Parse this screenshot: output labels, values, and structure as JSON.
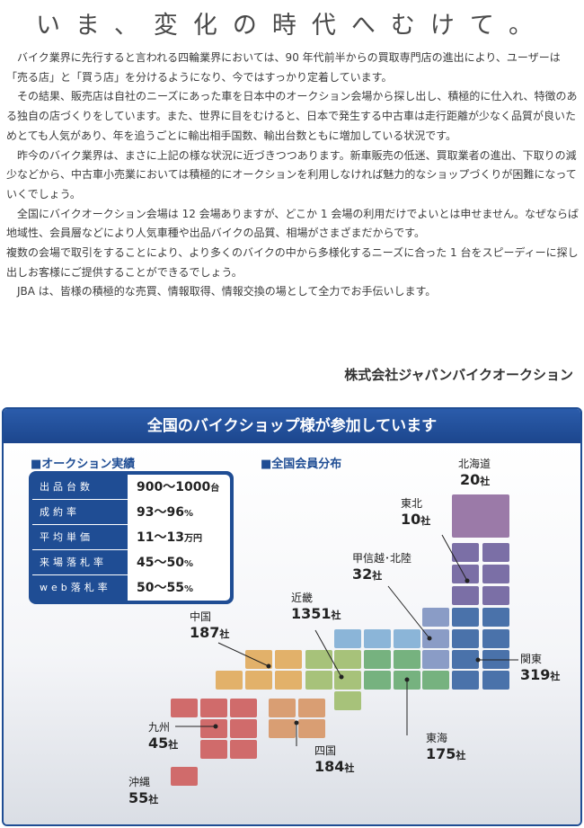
{
  "headline": "いま、変化の時代へむけて。",
  "paragraphs": [
    "　バイク業界に先行すると言われる四輪業界においては、90 年代前半からの買取専門店の進出により、ユーザーは「売る店」と「買う店」を分けるようになり、今ではすっかり定着しています。",
    "　その結果、販売店は自社のニーズにあった車を日本中のオークション会場から探し出し、積極的に仕入れ、特徴のある独自の店づくりをしています。また、世界に目をむけると、日本で発生する中古車は走行距離が少なく品質が良いためとても人気があり、年を追うごとに輸出相手国数、輸出台数ともに増加している状況です。",
    "　昨今のバイク業界は、まさに上記の様な状況に近づきつつあります。新車販売の低迷、買取業者の進出、下取りの減少などから、中古車小売業においては積極的にオークションを利用しなければ魅力的なショップづくりが困難になっていくでしょう。",
    "　全国にバイクオークション会場は 12 会場ありますが、どこか 1 会場の利用だけでよいとは申せません。なぜならば地域性、会員層などにより人気車種や出品バイクの品質、相場がさまざまだからです。",
    "複数の会場で取引をすることにより、より多くのバイクの中から多様化するニーズに合った 1 台をスピーディーに探し出しお客様にご提供することができるでしょう。",
    "　JBA は、皆様の積極的な売買、情報取得、情報交換の場として全力でお手伝いします。"
  ],
  "company": "株式会社ジャパンバイクオークション",
  "panel": {
    "title": "全国のバイクショップ様が参加しています",
    "stats_title": "■オークション実績",
    "map_title": "■全国会員分布",
    "stats": [
      {
        "label": "出品台数",
        "value": "900～1000",
        "unit": "台"
      },
      {
        "label": "成約率",
        "value": "93～96",
        "unit": "%"
      },
      {
        "label": "平均単価",
        "value": "11～13",
        "unit": "万円"
      },
      {
        "label": "来場落札率",
        "value": "45～50",
        "unit": "%"
      },
      {
        "label": "web落札率",
        "value": "50～55",
        "unit": "%"
      }
    ],
    "regions": {
      "hokkaido": {
        "name": "北海道",
        "count": "20",
        "unit": "社",
        "color": "#9b7aa8"
      },
      "tohoku": {
        "name": "東北",
        "count": "10",
        "unit": "社",
        "color": "#7b6fa6"
      },
      "koshinetsu": {
        "name": "甲信越･北陸",
        "count": "32",
        "unit": "社",
        "color": "#8a9cc6"
      },
      "kanto": {
        "name": "関東",
        "count": "319",
        "unit": "社",
        "color": "#4a72aa"
      },
      "tokai": {
        "name": "東海",
        "count": "175",
        "unit": "社",
        "color": "#76b27f"
      },
      "kinki": {
        "name": "近畿",
        "count": "1351",
        "unit": "社",
        "color": "#a7c27a"
      },
      "kinki_upper": {
        "color": "#8bb5d8"
      },
      "chugoku": {
        "name": "中国",
        "count": "187",
        "unit": "社",
        "color": "#e2b16a"
      },
      "shikoku": {
        "name": "四国",
        "count": "184",
        "unit": "社",
        "color": "#d99e73"
      },
      "kyushu": {
        "name": "九州",
        "count": "45",
        "unit": "社",
        "color": "#d06b6b"
      },
      "okinawa": {
        "name": "沖縄",
        "count": "55",
        "unit": "社",
        "color": "#d06b6b"
      }
    }
  }
}
